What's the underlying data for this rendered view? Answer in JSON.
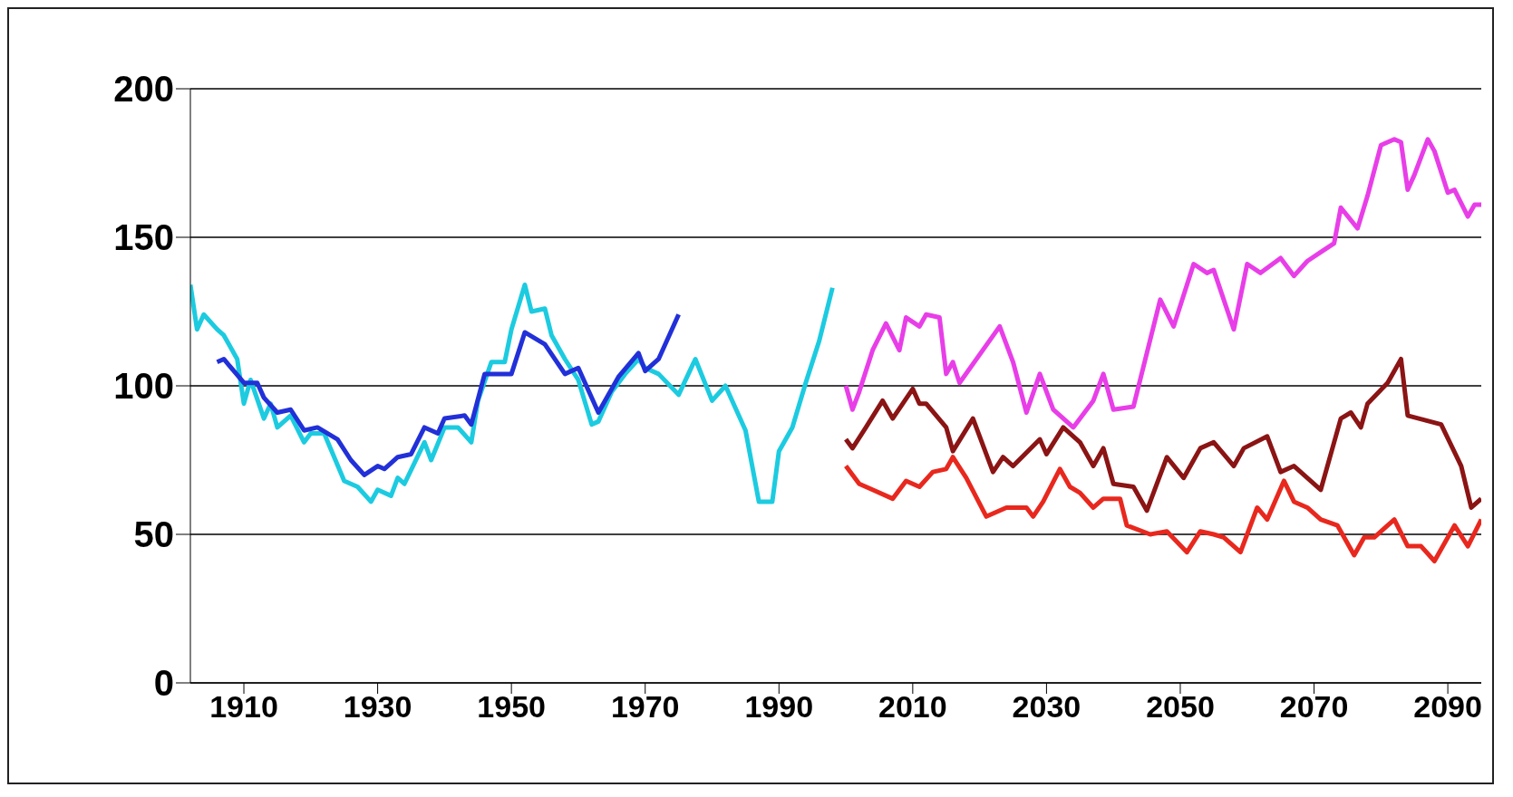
{
  "chart_data": {
    "type": "line",
    "xlim": [
      1902,
      2095
    ],
    "xticks": [
      1910,
      1930,
      1950,
      1970,
      1990,
      2010,
      2030,
      2050,
      2070,
      2090
    ],
    "ylim": [
      0,
      200
    ],
    "yticks": [
      0,
      50,
      100,
      150,
      200
    ],
    "grid": "y",
    "marker": "none",
    "line_style": "solid",
    "series": [
      {
        "color": "#1ccbe0",
        "x": [
          1902,
          1903,
          1904,
          1906,
          1907,
          1909,
          1910,
          1911,
          1913,
          1914,
          1915,
          1917,
          1919,
          1920,
          1922,
          1925,
          1927,
          1929,
          1930,
          1932,
          1933,
          1934,
          1937,
          1938,
          1940,
          1942,
          1944,
          1945,
          1947,
          1949,
          1950,
          1952,
          1953,
          1955,
          1956,
          1958,
          1960,
          1962,
          1963,
          1965,
          1967,
          1969,
          1970,
          1972,
          1975,
          1977.5,
          1980,
          1982,
          1985,
          1987,
          1989,
          1990,
          1992,
          1994,
          1996,
          1998
        ],
        "values": [
          134,
          119,
          124,
          119,
          117,
          109,
          94,
          102,
          89,
          94,
          86,
          90,
          81,
          84,
          84,
          68,
          66,
          61,
          65,
          63,
          69,
          67,
          81,
          75,
          86,
          86,
          81,
          95,
          108,
          108,
          119,
          134,
          125,
          126,
          117,
          109,
          102,
          87,
          88,
          98,
          104,
          109,
          106,
          104,
          97,
          109,
          95,
          100,
          85,
          61,
          61,
          78,
          86,
          101,
          115,
          133
        ]
      },
      {
        "color": "#2230d8",
        "x": [
          1906,
          1907,
          1910,
          1912,
          1913,
          1915,
          1917,
          1919,
          1921,
          1924,
          1926,
          1928,
          1930,
          1931,
          1933,
          1935,
          1937,
          1939,
          1940,
          1943,
          1944,
          1946,
          1950,
          1952,
          1955,
          1958,
          1960,
          1963,
          1966,
          1969,
          1970,
          1972,
          1975
        ],
        "values": [
          108,
          109,
          101,
          101,
          96,
          91,
          92,
          85,
          86,
          82,
          75,
          70,
          73,
          72,
          76,
          77,
          86,
          84,
          89,
          90,
          87,
          104,
          104,
          118,
          114,
          104,
          106,
          91,
          103,
          111,
          105,
          109,
          124
        ]
      },
      {
        "color": "#e83ee8",
        "x": [
          2000,
          2001,
          2002,
          2004,
          2006,
          2008,
          2009,
          2011,
          2012,
          2014,
          2015,
          2016,
          2017,
          2023,
          2025,
          2027,
          2029,
          2031,
          2034,
          2037,
          2038.5,
          2040,
          2043,
          2047,
          2049,
          2052,
          2054,
          2055,
          2058,
          2060,
          2062,
          2065,
          2067,
          2069,
          2071,
          2073,
          2074,
          2076.5,
          2078,
          2080,
          2082,
          2083,
          2084,
          2085,
          2087,
          2088,
          2090,
          2091,
          2093,
          2094,
          2095
        ],
        "values": [
          100,
          92,
          98,
          112,
          121,
          112,
          123,
          120,
          124,
          123,
          104,
          108,
          101,
          120,
          108,
          91,
          104,
          92,
          86,
          95,
          104,
          92,
          93,
          129,
          120,
          141,
          138,
          139,
          119,
          141,
          138,
          143,
          137,
          142,
          145,
          148,
          160,
          153,
          164,
          181,
          183,
          182,
          166,
          171,
          183,
          179,
          165,
          166,
          157,
          161,
          161
        ]
      },
      {
        "color": "#8b1414",
        "x": [
          2000,
          2001,
          2003,
          2005.5,
          2007,
          2010,
          2011,
          2012,
          2015,
          2016,
          2019,
          2022,
          2023.5,
          2025,
          2029,
          2030,
          2032.5,
          2035,
          2037,
          2038.5,
          2040,
          2043,
          2045,
          2048,
          2050.5,
          2053,
          2055,
          2058,
          2059.5,
          2063,
          2065,
          2067,
          2071,
          2074,
          2075.5,
          2077,
          2078,
          2081,
          2083,
          2084,
          2089,
          2092,
          2093.5,
          2095
        ],
        "values": [
          82,
          79,
          86,
          95,
          89,
          99,
          94,
          94,
          86,
          78,
          89,
          71,
          76,
          73,
          82,
          77,
          86,
          81,
          73,
          79,
          67,
          66,
          58,
          76,
          69,
          79,
          81,
          73,
          79,
          83,
          71,
          73,
          65,
          89,
          91,
          86,
          94,
          101,
          109,
          90,
          87,
          73,
          59,
          62
        ]
      },
      {
        "color": "#e8281e",
        "x": [
          2000,
          2002,
          2004,
          2007,
          2009,
          2011,
          2013,
          2015,
          2016,
          2018,
          2021,
          2024,
          2027,
          2028,
          2029.5,
          2032,
          2033.5,
          2035,
          2037,
          2038.5,
          2041,
          2042,
          2045.5,
          2048,
          2051,
          2053,
          2055,
          2056.5,
          2059,
          2061.5,
          2063,
          2065.5,
          2067,
          2069,
          2071,
          2073.5,
          2076,
          2077.5,
          2079,
          2082,
          2084,
          2086,
          2088,
          2091,
          2093,
          2095
        ],
        "values": [
          73,
          67,
          65,
          62,
          68,
          66,
          71,
          72,
          76,
          69,
          56,
          59,
          59,
          56,
          61,
          72,
          66,
          64,
          59,
          62,
          62,
          53,
          50,
          51,
          44,
          51,
          50,
          49,
          44,
          59,
          55,
          68,
          61,
          59,
          55,
          53,
          43,
          49,
          49,
          55,
          46,
          46,
          41,
          53,
          46,
          55
        ]
      }
    ]
  }
}
